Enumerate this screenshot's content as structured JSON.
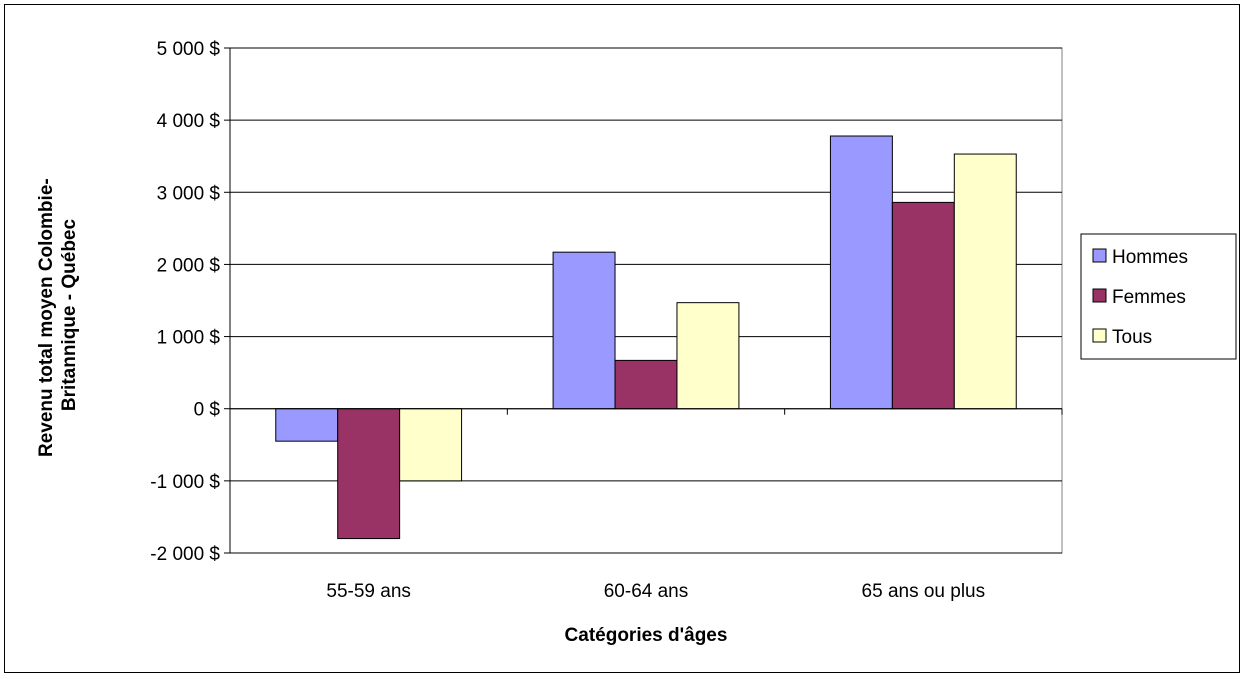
{
  "chart_data": {
    "type": "bar",
    "title": "",
    "xlabel": "Catégories d'âges",
    "ylabel_lines": [
      "Revenu total moyen Colombie-",
      "Britannique - Québec"
    ],
    "categories": [
      "55-59 ans",
      "60-64 ans",
      "65 ans ou plus"
    ],
    "series": [
      {
        "name": "Hommes",
        "values": [
          -450,
          2170,
          3780
        ],
        "color": "#9999ff"
      },
      {
        "name": "Femmes",
        "values": [
          -1800,
          670,
          2860
        ],
        "color": "#993366"
      },
      {
        "name": "Tous",
        "values": [
          -1000,
          1470,
          3530
        ],
        "color": "#ffffcc"
      }
    ],
    "ylim": [
      -2000,
      5000
    ],
    "yticks": [
      {
        "value": -2000,
        "label": "-2 000 $"
      },
      {
        "value": -1000,
        "label": "-1 000 $"
      },
      {
        "value": 0,
        "label": "0 $"
      },
      {
        "value": 1000,
        "label": "1 000 $"
      },
      {
        "value": 2000,
        "label": "2 000 $"
      },
      {
        "value": 3000,
        "label": "3 000 $"
      },
      {
        "value": 4000,
        "label": "4 000 $"
      },
      {
        "value": 5000,
        "label": "5 000 $"
      }
    ],
    "grid": true,
    "legend_position": "right"
  }
}
